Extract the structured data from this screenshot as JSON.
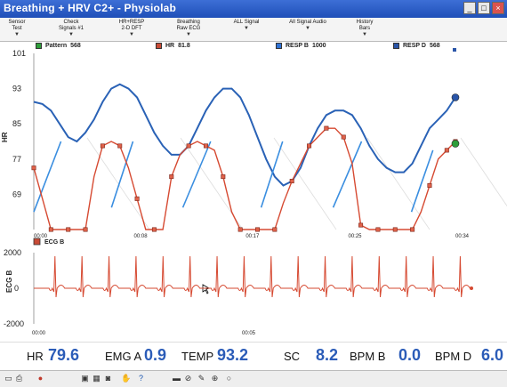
{
  "window": {
    "title": "Breathing + HRV C2+ - Physiolab"
  },
  "menu": [
    {
      "line1": "Sensor",
      "line2": "Test"
    },
    {
      "line1": "Check",
      "line2": "Signals #1"
    },
    {
      "line1": "HR+RESP",
      "line2": "2-D DFT"
    },
    {
      "line1": "Breathing",
      "line2": "Raw ECG"
    },
    {
      "line1": "ALL Signal",
      "line2": ""
    },
    {
      "line1": "All Signal Audio",
      "line2": ""
    },
    {
      "line1": "History",
      "line2": "Bars"
    }
  ],
  "legend": [
    {
      "label": "Pattern",
      "value": "568",
      "color": "#2e9e3a"
    },
    {
      "label": "HR",
      "value": "81.8",
      "color": "#c94b36"
    },
    {
      "label": "RESP B",
      "value": "1000",
      "color": "#2f72d4"
    },
    {
      "label": "RESP D",
      "value": "568",
      "color": "#2a55a8"
    }
  ],
  "chart_data": [
    {
      "type": "line",
      "ylabel": "HR",
      "ylim": [
        61,
        101
      ],
      "yticks": [
        "101",
        "93",
        "85",
        "77",
        "69"
      ],
      "xticks": [
        "00:00",
        "00:08",
        "00:17",
        "00:25",
        "00:34"
      ],
      "series": [
        {
          "name": "HR",
          "color": "#d64a32",
          "values": [
            75,
            68,
            61,
            61,
            61,
            61,
            61,
            73,
            80,
            81,
            80,
            75,
            68,
            61,
            61,
            61,
            73,
            78,
            80,
            81,
            80,
            79,
            73,
            65,
            61,
            61,
            61,
            61,
            61,
            67,
            72,
            76,
            80,
            82,
            84,
            84,
            82,
            76,
            62,
            61,
            61,
            61,
            61,
            61,
            61,
            65,
            71,
            77,
            79,
            81
          ]
        },
        {
          "name": "RESP D",
          "color": "#2a62b6",
          "values": [
            90,
            89.5,
            88,
            85,
            82,
            81,
            83,
            86,
            90,
            93,
            94,
            93,
            91,
            87,
            83,
            80,
            78,
            78,
            80,
            84,
            88,
            91,
            93,
            93,
            91,
            87,
            82,
            77,
            73,
            71,
            72,
            75,
            80,
            84,
            87,
            88,
            88,
            87,
            84,
            80,
            77,
            75,
            74,
            74,
            76,
            80,
            84,
            86,
            88,
            91
          ]
        },
        {
          "name": "RESP B",
          "color": "#3a8ee0",
          "values": [
            65,
            81,
            null,
            66,
            81,
            null,
            66,
            81,
            null,
            66,
            81,
            null,
            66,
            81,
            null,
            65,
            79
          ]
        }
      ],
      "markers": [
        {
          "name": "Pattern",
          "color": "#2e9e3a",
          "x": 49,
          "y": 80.5
        },
        {
          "name": "RESP D",
          "color": "#2a55a8",
          "x": 49,
          "y": 91
        }
      ]
    },
    {
      "type": "line",
      "ylabel": "ECG B",
      "legend": "ECG B",
      "ylim": [
        -2000,
        2000
      ],
      "yticks": [
        "2000",
        "0",
        "-2000"
      ],
      "xticks": [
        "00:00",
        "00:05"
      ],
      "series": [
        {
          "name": "ECG B",
          "color": "#d64a32",
          "beats": 16
        }
      ]
    }
  ],
  "status": [
    {
      "label": "HR",
      "value": "79.6"
    },
    {
      "label": "EMG A",
      "value": "0.9"
    },
    {
      "label": "TEMP",
      "value": "93.2"
    },
    {
      "label": "SC",
      "value": "8.2"
    },
    {
      "label": "BPM B",
      "value": "0.0"
    },
    {
      "label": "BPM D",
      "value": "6.0"
    }
  ],
  "toolbar": [
    "window-icon",
    "print-icon",
    "record-icon",
    "monitor-icon",
    "grid-icon",
    "camera-icon",
    "hand-icon",
    "help-icon",
    "bar-icon",
    "mute-icon",
    "draw-icon",
    "add-icon",
    "circle-icon"
  ]
}
